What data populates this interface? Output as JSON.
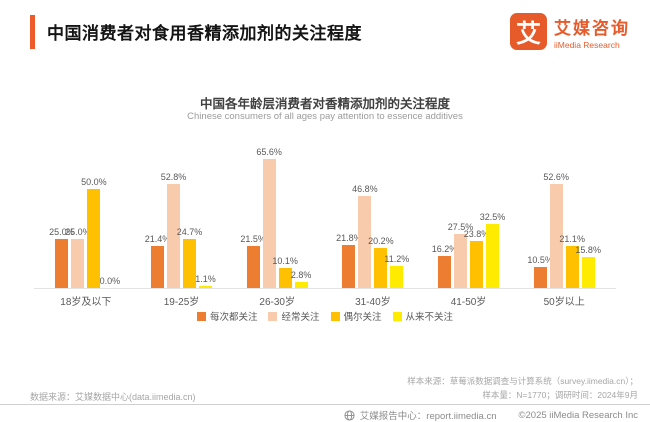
{
  "header": {
    "title": "中国消费者对食用香精添加剂的关注程度",
    "logo": {
      "glyph": "艾",
      "name_cn": "艾媒咨询",
      "name_en": "iiMedia Research"
    },
    "accent_color": "#EE5A2A",
    "brand_color": "#E75B2B"
  },
  "chart": {
    "title": "中国各年龄层消费者对香精添加剂的关注程度",
    "subtitle": "Chinese consumers of all ages pay attention to essence additives"
  },
  "chart_data": {
    "type": "bar",
    "categories": [
      "18岁及以下",
      "19-25岁",
      "26-30岁",
      "31-40岁",
      "41-50岁",
      "50岁以上"
    ],
    "series": [
      {
        "name": "每次都关注",
        "color": "#ED7D31",
        "values": [
          25.0,
          21.4,
          21.5,
          21.8,
          16.2,
          10.5
        ]
      },
      {
        "name": "经常关注",
        "color": "#F8CBAD",
        "values": [
          25.0,
          52.8,
          65.6,
          46.8,
          27.5,
          52.6
        ]
      },
      {
        "name": "偶尔关注",
        "color": "#FFC000",
        "values": [
          50.0,
          24.7,
          10.1,
          20.2,
          23.8,
          21.1
        ]
      },
      {
        "name": "从来不关注",
        "color": "#FFEB00",
        "values": [
          0.0,
          1.1,
          2.8,
          11.2,
          32.5,
          15.8
        ]
      }
    ],
    "value_suffix": "%",
    "value_decimals": 1,
    "ylim": [
      0,
      70
    ],
    "grid": false,
    "legend_position": "bottom"
  },
  "footer": {
    "data_source": "数据来源：艾媒数据中心(data.iimedia.cn)",
    "sample_source": "样本来源：草莓派数据调查与计算系统（survey.iimedia.cn）；",
    "sample_size": "样本量：N=1770；调研时间：2024年9月",
    "report_center": "艾媒报告中心：report.iimedia.cn",
    "copyright": "©2025  iiMedia Research  Inc"
  }
}
